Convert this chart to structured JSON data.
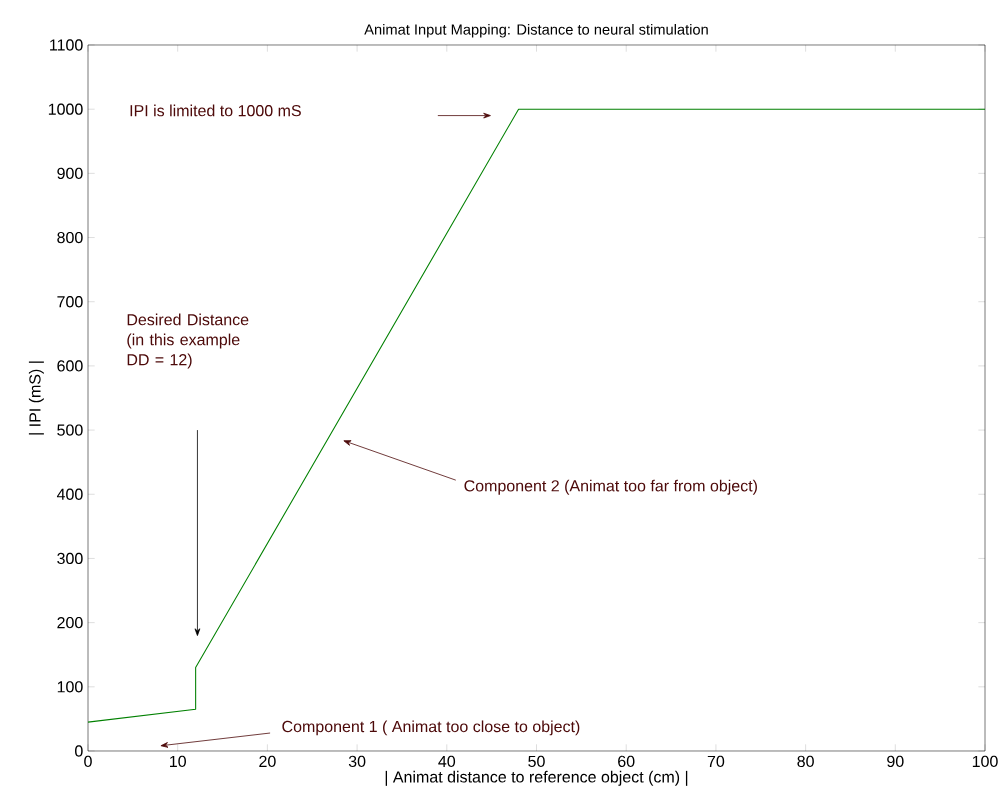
{
  "chart_data": {
    "type": "line",
    "title": "Animat Input Mapping: Distance to neural stimulation",
    "xlabel": "| Animat distance to reference object (cm) |",
    "ylabel": "| IPI (mS) |",
    "series": [
      {
        "color": "#008000",
        "x": [
          0,
          12,
          12,
          48,
          100
        ],
        "values": [
          45,
          65,
          130,
          1000,
          1000
        ]
      }
    ],
    "xlim": [
      0,
      100
    ],
    "ylim": [
      0,
      1100
    ],
    "xticks": [
      0,
      10,
      20,
      30,
      40,
      50,
      60,
      70,
      80,
      90,
      100
    ],
    "yticks": [
      0,
      100,
      200,
      300,
      400,
      500,
      600,
      700,
      800,
      900,
      1000,
      1100
    ],
    "grid": false,
    "marker": "none",
    "line_style": "solid",
    "annotations": [
      "IPI is limited to 1000 mS",
      "Desired Distance (in this example DD = 12)",
      "Component 2 (Animat too far from object)",
      "Component 1 ( Animat too close to object)"
    ]
  }
}
